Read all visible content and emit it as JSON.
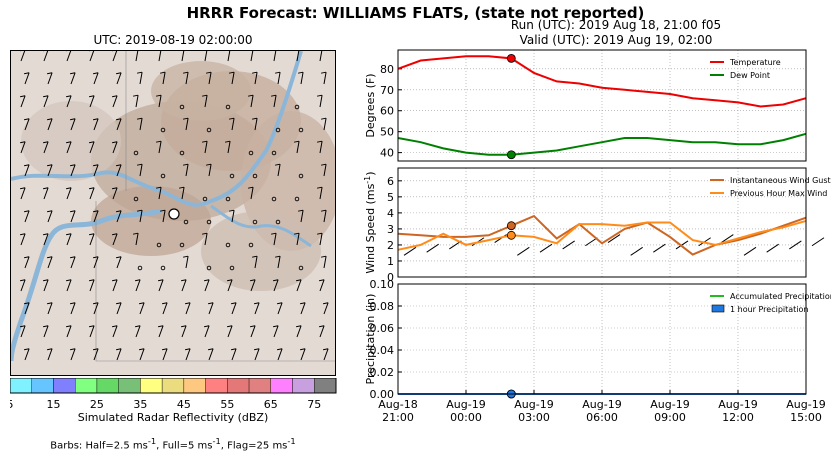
{
  "title": "HRRR Forecast: WILLIAMS FLATS, (state not reported)",
  "map": {
    "title": "UTC: 2019-08-19 02:00:00",
    "colorbar": {
      "label": "Simulated Radar Reflectivity (dBZ)",
      "ticks": [
        5,
        15,
        25,
        35,
        45,
        55,
        65,
        75
      ],
      "colors": [
        "#7ff1ff",
        "#66c4fe",
        "#8080ff",
        "#80ff80",
        "#66d866",
        "#78c078",
        "#ffff80",
        "#ecdc80",
        "#ffc880",
        "#ff8080",
        "#e47878",
        "#e08080",
        "#ff80ff",
        "#c8a0e0",
        "#808080"
      ]
    },
    "barbs_note_prefix": "Barbs: Half=2.5 ms",
    "barbs_note_mid1": ", Full=5 ms",
    "barbs_note_mid2": ", Flag=25 ms",
    "barbs_note_sup": "-1"
  },
  "header": {
    "run": "Run (UTC): 2019 Aug 18, 21:00 f05",
    "valid": "Valid (UTC): 2019 Aug 19, 02:00"
  },
  "chart_data": [
    {
      "type": "line",
      "ylabel": "Degrees (F)",
      "ylim": [
        36,
        89
      ],
      "yticks": [
        40,
        50,
        60,
        70,
        80
      ],
      "grid": true,
      "legend": "top-right",
      "x": [
        0,
        1,
        2,
        3,
        4,
        5,
        6,
        7,
        8,
        9,
        10,
        11,
        12,
        13,
        14,
        15,
        16,
        17,
        18
      ],
      "series": [
        {
          "name": "Temperature",
          "color": "#ee0000",
          "values": [
            80,
            84,
            85,
            86,
            86,
            85,
            78,
            74,
            73,
            71,
            70,
            69,
            68,
            66,
            65,
            64,
            62,
            63,
            66
          ]
        },
        {
          "name": "Dew Point",
          "color": "#008000",
          "values": [
            47,
            45,
            42,
            40,
            39,
            39,
            40,
            41,
            43,
            45,
            47,
            47,
            46,
            45,
            45,
            44,
            44,
            46,
            49
          ]
        }
      ],
      "current_index": 5
    },
    {
      "type": "line",
      "ylabel": "Wind Speed (ms",
      "ylabel_sup": "-1",
      "ylabel_end": ")",
      "ylim": [
        0,
        6.8
      ],
      "yticks": [
        0,
        1,
        2,
        3,
        4,
        5,
        6
      ],
      "grid": true,
      "legend": "top-right",
      "x": [
        0,
        1,
        2,
        3,
        4,
        5,
        6,
        7,
        8,
        9,
        10,
        11,
        12,
        13,
        14,
        15,
        16,
        17,
        18
      ],
      "series": [
        {
          "name": "Instantaneous Wind Gust",
          "color": "#cc6622",
          "values": [
            2.7,
            2.6,
            2.5,
            2.5,
            2.6,
            3.2,
            3.8,
            2.4,
            3.3,
            2.1,
            3.0,
            3.4,
            2.5,
            1.4,
            2.0,
            2.3,
            2.7,
            3.2,
            3.7
          ]
        },
        {
          "name": "Previous Hour Max Wind",
          "color": "#ff8c1a",
          "values": [
            1.7,
            2.0,
            2.7,
            2.0,
            2.3,
            2.6,
            2.5,
            2.1,
            3.3,
            3.3,
            3.2,
            3.4,
            3.4,
            2.3,
            2.0,
            2.4,
            2.8,
            3.1,
            3.5
          ]
        }
      ],
      "current_index": 5
    },
    {
      "type": "line",
      "ylabel": "Precipitation (in)",
      "ylim": [
        0,
        0.1
      ],
      "yticks": [
        "0.00",
        "0.02",
        "0.04",
        "0.06",
        "0.08",
        "0.10"
      ],
      "grid": true,
      "legend": "top-right",
      "x": [
        0,
        1,
        2,
        3,
        4,
        5,
        6,
        7,
        8,
        9,
        10,
        11,
        12,
        13,
        14,
        15,
        16,
        17,
        18
      ],
      "series": [
        {
          "name": "Accumulated Precipitation",
          "color": "#22bb22",
          "values": [
            0,
            0,
            0,
            0,
            0,
            0,
            0,
            0,
            0,
            0,
            0,
            0,
            0,
            0,
            0,
            0,
            0,
            0,
            0
          ]
        },
        {
          "name": "1 hour Precipitation",
          "color": "#1f77e0",
          "values": [
            0,
            0,
            0,
            0,
            0,
            0,
            0,
            0,
            0,
            0,
            0,
            0,
            0,
            0,
            0,
            0,
            0,
            0,
            0
          ]
        }
      ],
      "xticks": [
        {
          "i": 0,
          "l1": "Aug-18",
          "l2": "21:00"
        },
        {
          "i": 3,
          "l1": "Aug-19",
          "l2": "00:00"
        },
        {
          "i": 6,
          "l1": "Aug-19",
          "l2": "03:00"
        },
        {
          "i": 9,
          "l1": "Aug-19",
          "l2": "06:00"
        },
        {
          "i": 12,
          "l1": "Aug-19",
          "l2": "09:00"
        },
        {
          "i": 15,
          "l1": "Aug-19",
          "l2": "12:00"
        },
        {
          "i": 18,
          "l1": "Aug-19",
          "l2": "15:00"
        }
      ],
      "current_index": 5
    }
  ]
}
